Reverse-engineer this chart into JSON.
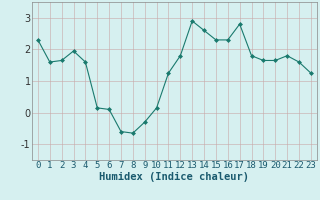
{
  "x": [
    0,
    1,
    2,
    3,
    4,
    5,
    6,
    7,
    8,
    9,
    10,
    11,
    12,
    13,
    14,
    15,
    16,
    17,
    18,
    19,
    20,
    21,
    22,
    23
  ],
  "y": [
    2.3,
    1.6,
    1.65,
    1.95,
    1.6,
    0.15,
    0.1,
    -0.6,
    -0.65,
    -0.3,
    0.15,
    1.25,
    1.8,
    2.9,
    2.6,
    2.3,
    2.3,
    2.8,
    1.8,
    1.65,
    1.65,
    1.8,
    1.6,
    1.25
  ],
  "line_color": "#1a7a6e",
  "marker": "D",
  "marker_size": 2.0,
  "bg_color": "#d6f0f0",
  "grid_color_major": "#c8b8b8",
  "grid_color_minor": "#d8d0d0",
  "xlabel": "Humidex (Indice chaleur)",
  "xlabel_color": "#1a5a6e",
  "ylim": [
    -1.5,
    3.5
  ],
  "xlim": [
    -0.5,
    23.5
  ],
  "yticks": [
    -1,
    0,
    1,
    2,
    3
  ],
  "xticks": [
    0,
    1,
    2,
    3,
    4,
    5,
    6,
    7,
    8,
    9,
    10,
    11,
    12,
    13,
    14,
    15,
    16,
    17,
    18,
    19,
    20,
    21,
    22,
    23
  ],
  "tick_fontsize": 6.5,
  "xlabel_fontsize": 7.5
}
